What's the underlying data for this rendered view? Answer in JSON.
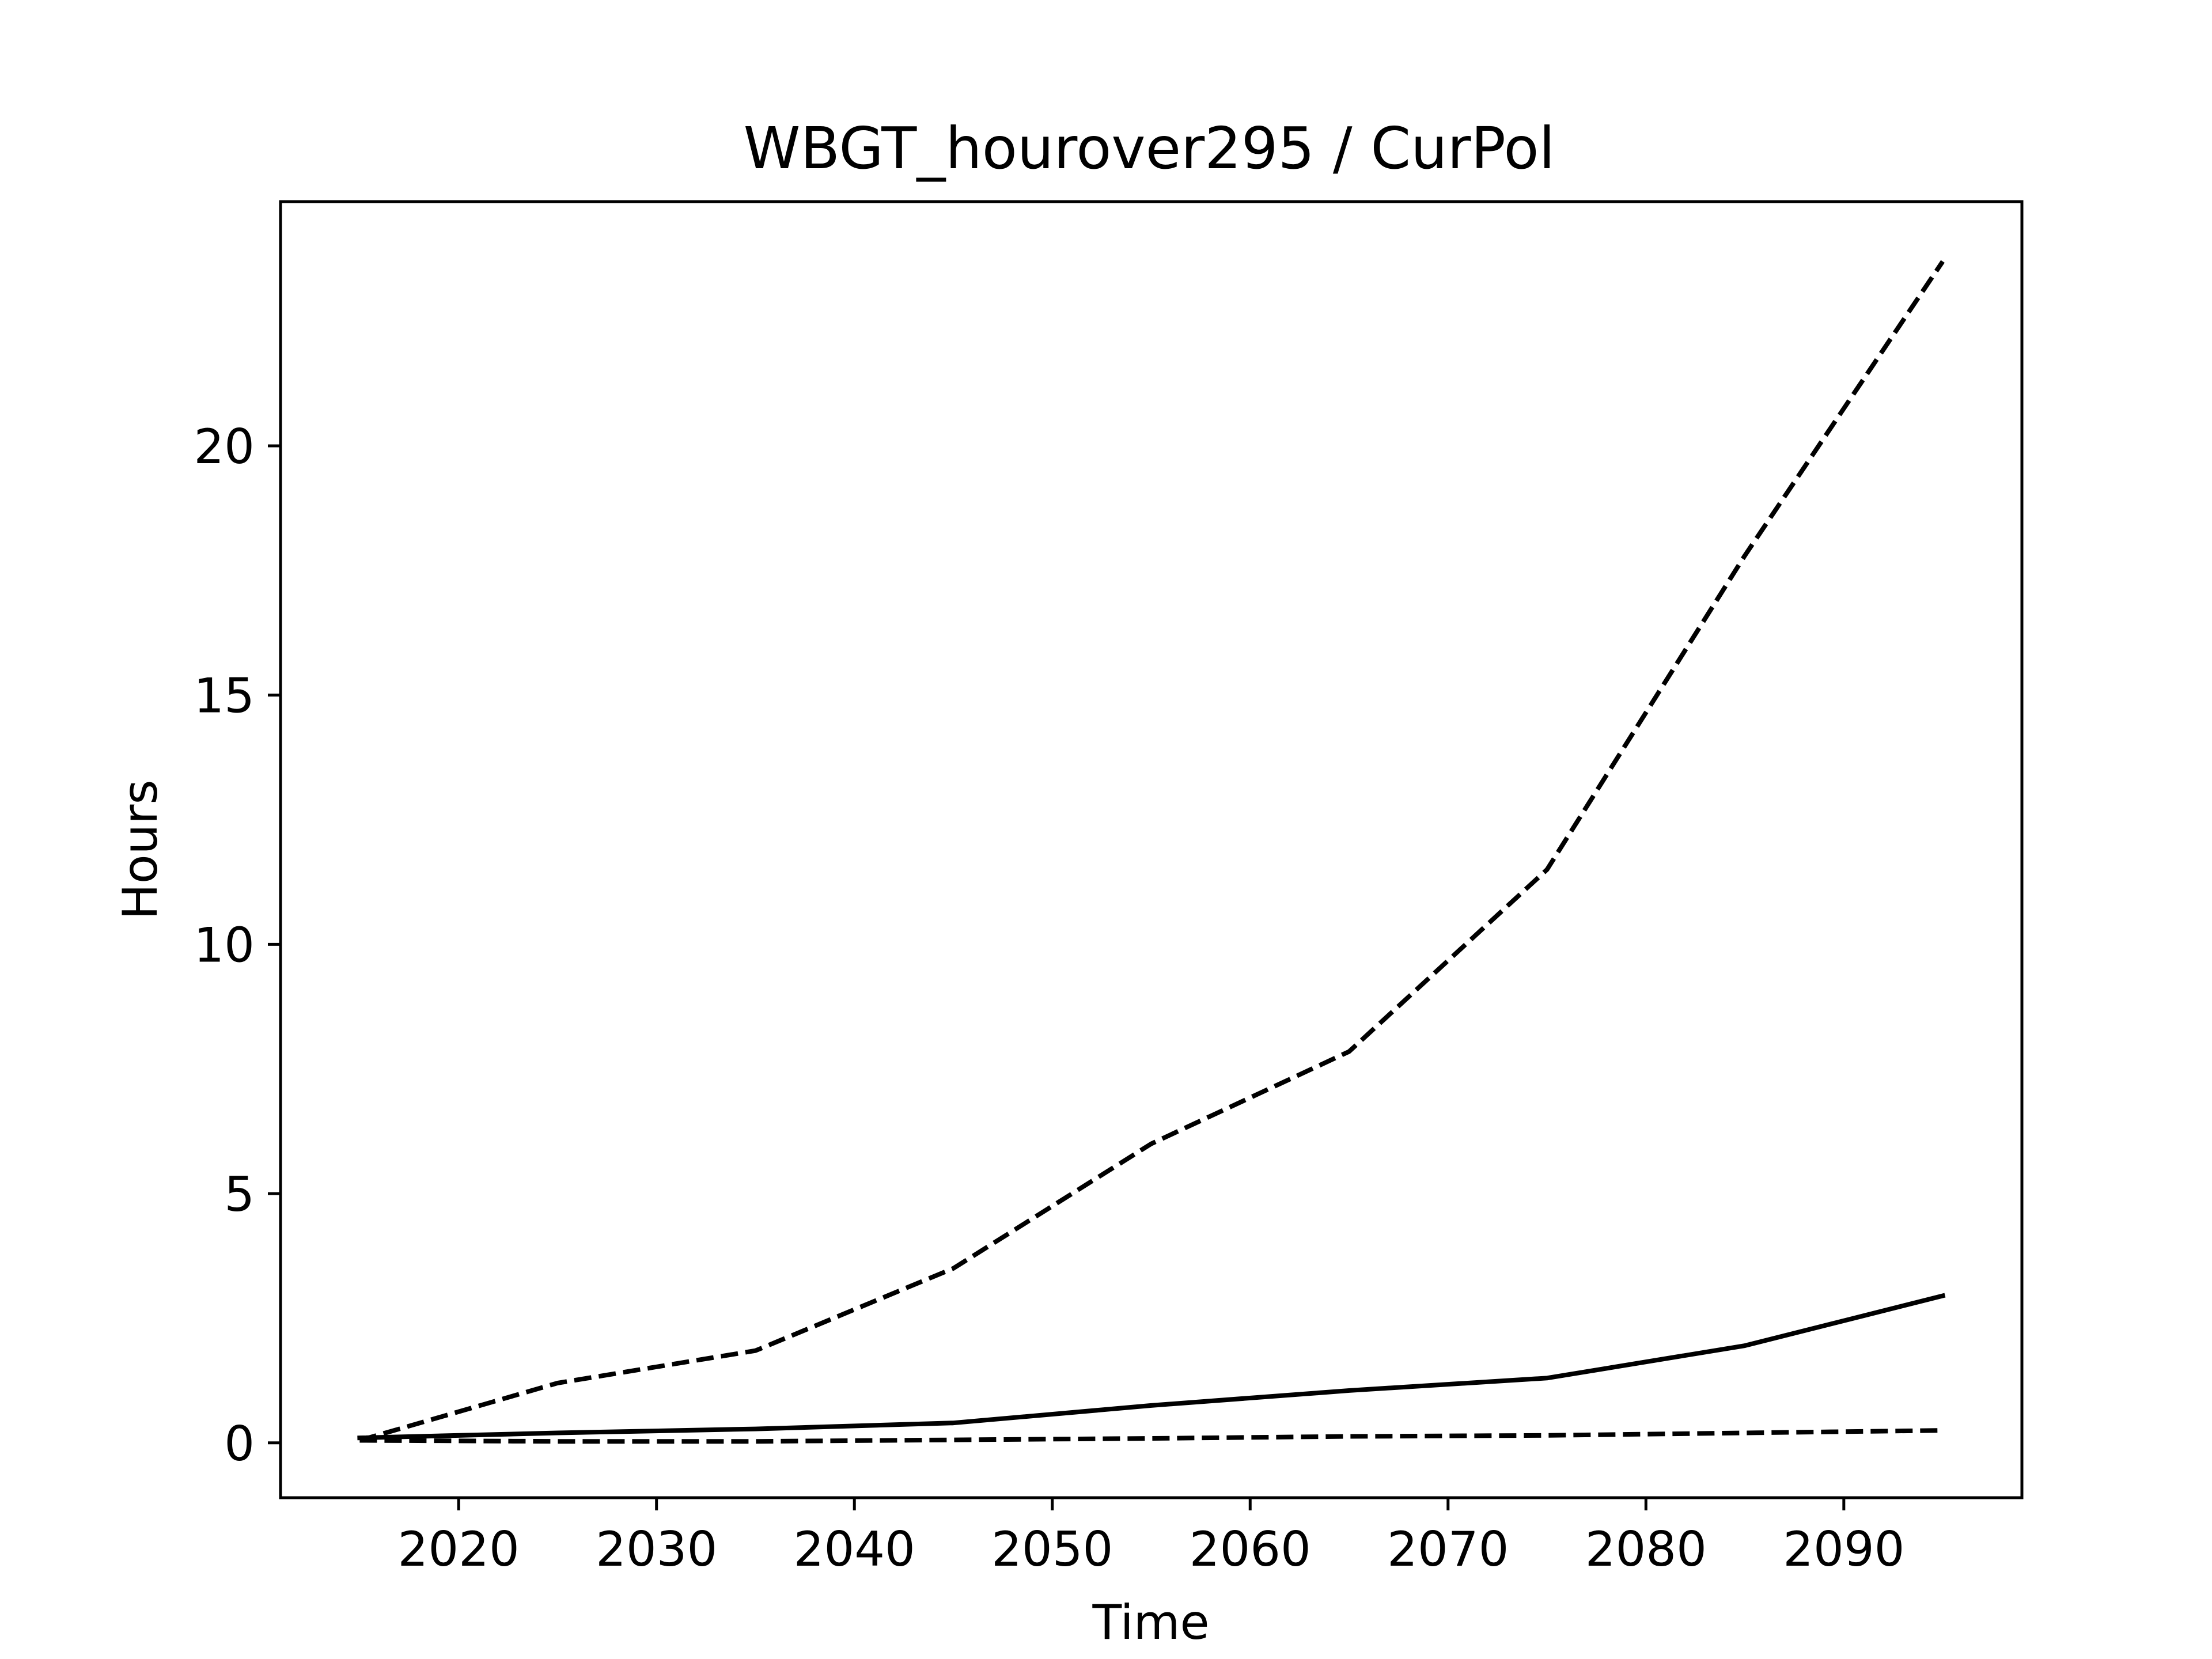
{
  "chart_data": {
    "type": "line",
    "title": "WBGT_hourover295 / CurPol",
    "xlabel": "Time",
    "ylabel": "Hours",
    "xlim": [
      2011,
      2099
    ],
    "ylim": [
      -1.1,
      24.9
    ],
    "xticks": [
      2020,
      2030,
      2040,
      2050,
      2060,
      2070,
      2080,
      2090
    ],
    "yticks": [
      0,
      5,
      10,
      15,
      20
    ],
    "grid": false,
    "legend": "none",
    "x": [
      2015,
      2025,
      2035,
      2045,
      2055,
      2065,
      2075,
      2085,
      2095
    ],
    "series": [
      {
        "style": "dashed",
        "color": "#000000",
        "values": [
          0.05,
          1.2,
          1.85,
          3.5,
          6.0,
          7.85,
          11.5,
          17.8,
          23.7
        ]
      },
      {
        "style": "solid",
        "color": "#000000",
        "values": [
          0.1,
          0.2,
          0.28,
          0.4,
          0.75,
          1.05,
          1.3,
          1.95,
          2.95
        ]
      },
      {
        "style": "dashed",
        "color": "#000000",
        "values": [
          0.05,
          0.03,
          0.03,
          0.06,
          0.09,
          0.13,
          0.15,
          0.2,
          0.25
        ]
      }
    ]
  }
}
